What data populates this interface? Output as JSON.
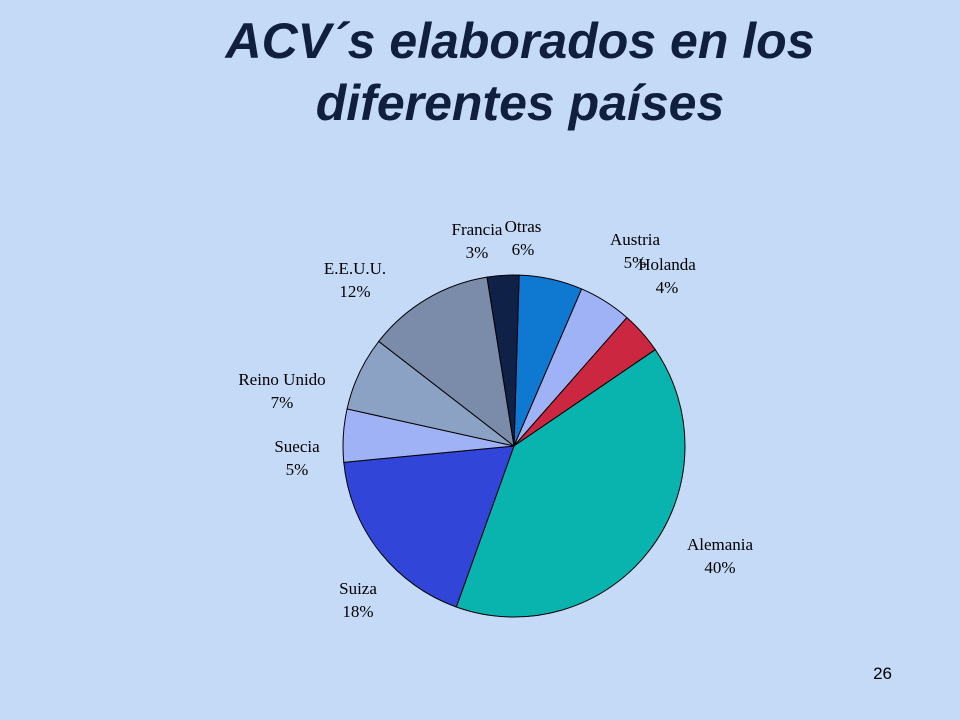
{
  "slide": {
    "title_line1": "ACV´s elaborados en los",
    "title_line2": "diferentes países",
    "page_number": "26"
  },
  "chart_data": {
    "type": "pie",
    "title": "",
    "slices": [
      {
        "name": "Otras",
        "value": 6,
        "label": "6%",
        "color": "#0f78d0"
      },
      {
        "name": "Austria",
        "value": 5,
        "label": "5%",
        "color": "#9fb2f5"
      },
      {
        "name": "Holanda",
        "value": 4,
        "label": "4%",
        "color": "#cc2741"
      },
      {
        "name": "Alemania",
        "value": 40,
        "label": "40%",
        "color": "#0ab4ae"
      },
      {
        "name": "Suiza",
        "value": 18,
        "label": "18%",
        "color": "#3146d8"
      },
      {
        "name": "Suecia",
        "value": 5,
        "label": "5%",
        "color": "#9fb2f5"
      },
      {
        "name": "Reino Unido",
        "value": 7,
        "label": "7%",
        "color": "#8ca2c4"
      },
      {
        "name": "E.E.U.U.",
        "value": 12,
        "label": "12%",
        "color": "#7a8caa"
      },
      {
        "name": "Francia",
        "value": 3,
        "label": "3%",
        "color": "#0f2146"
      }
    ]
  }
}
